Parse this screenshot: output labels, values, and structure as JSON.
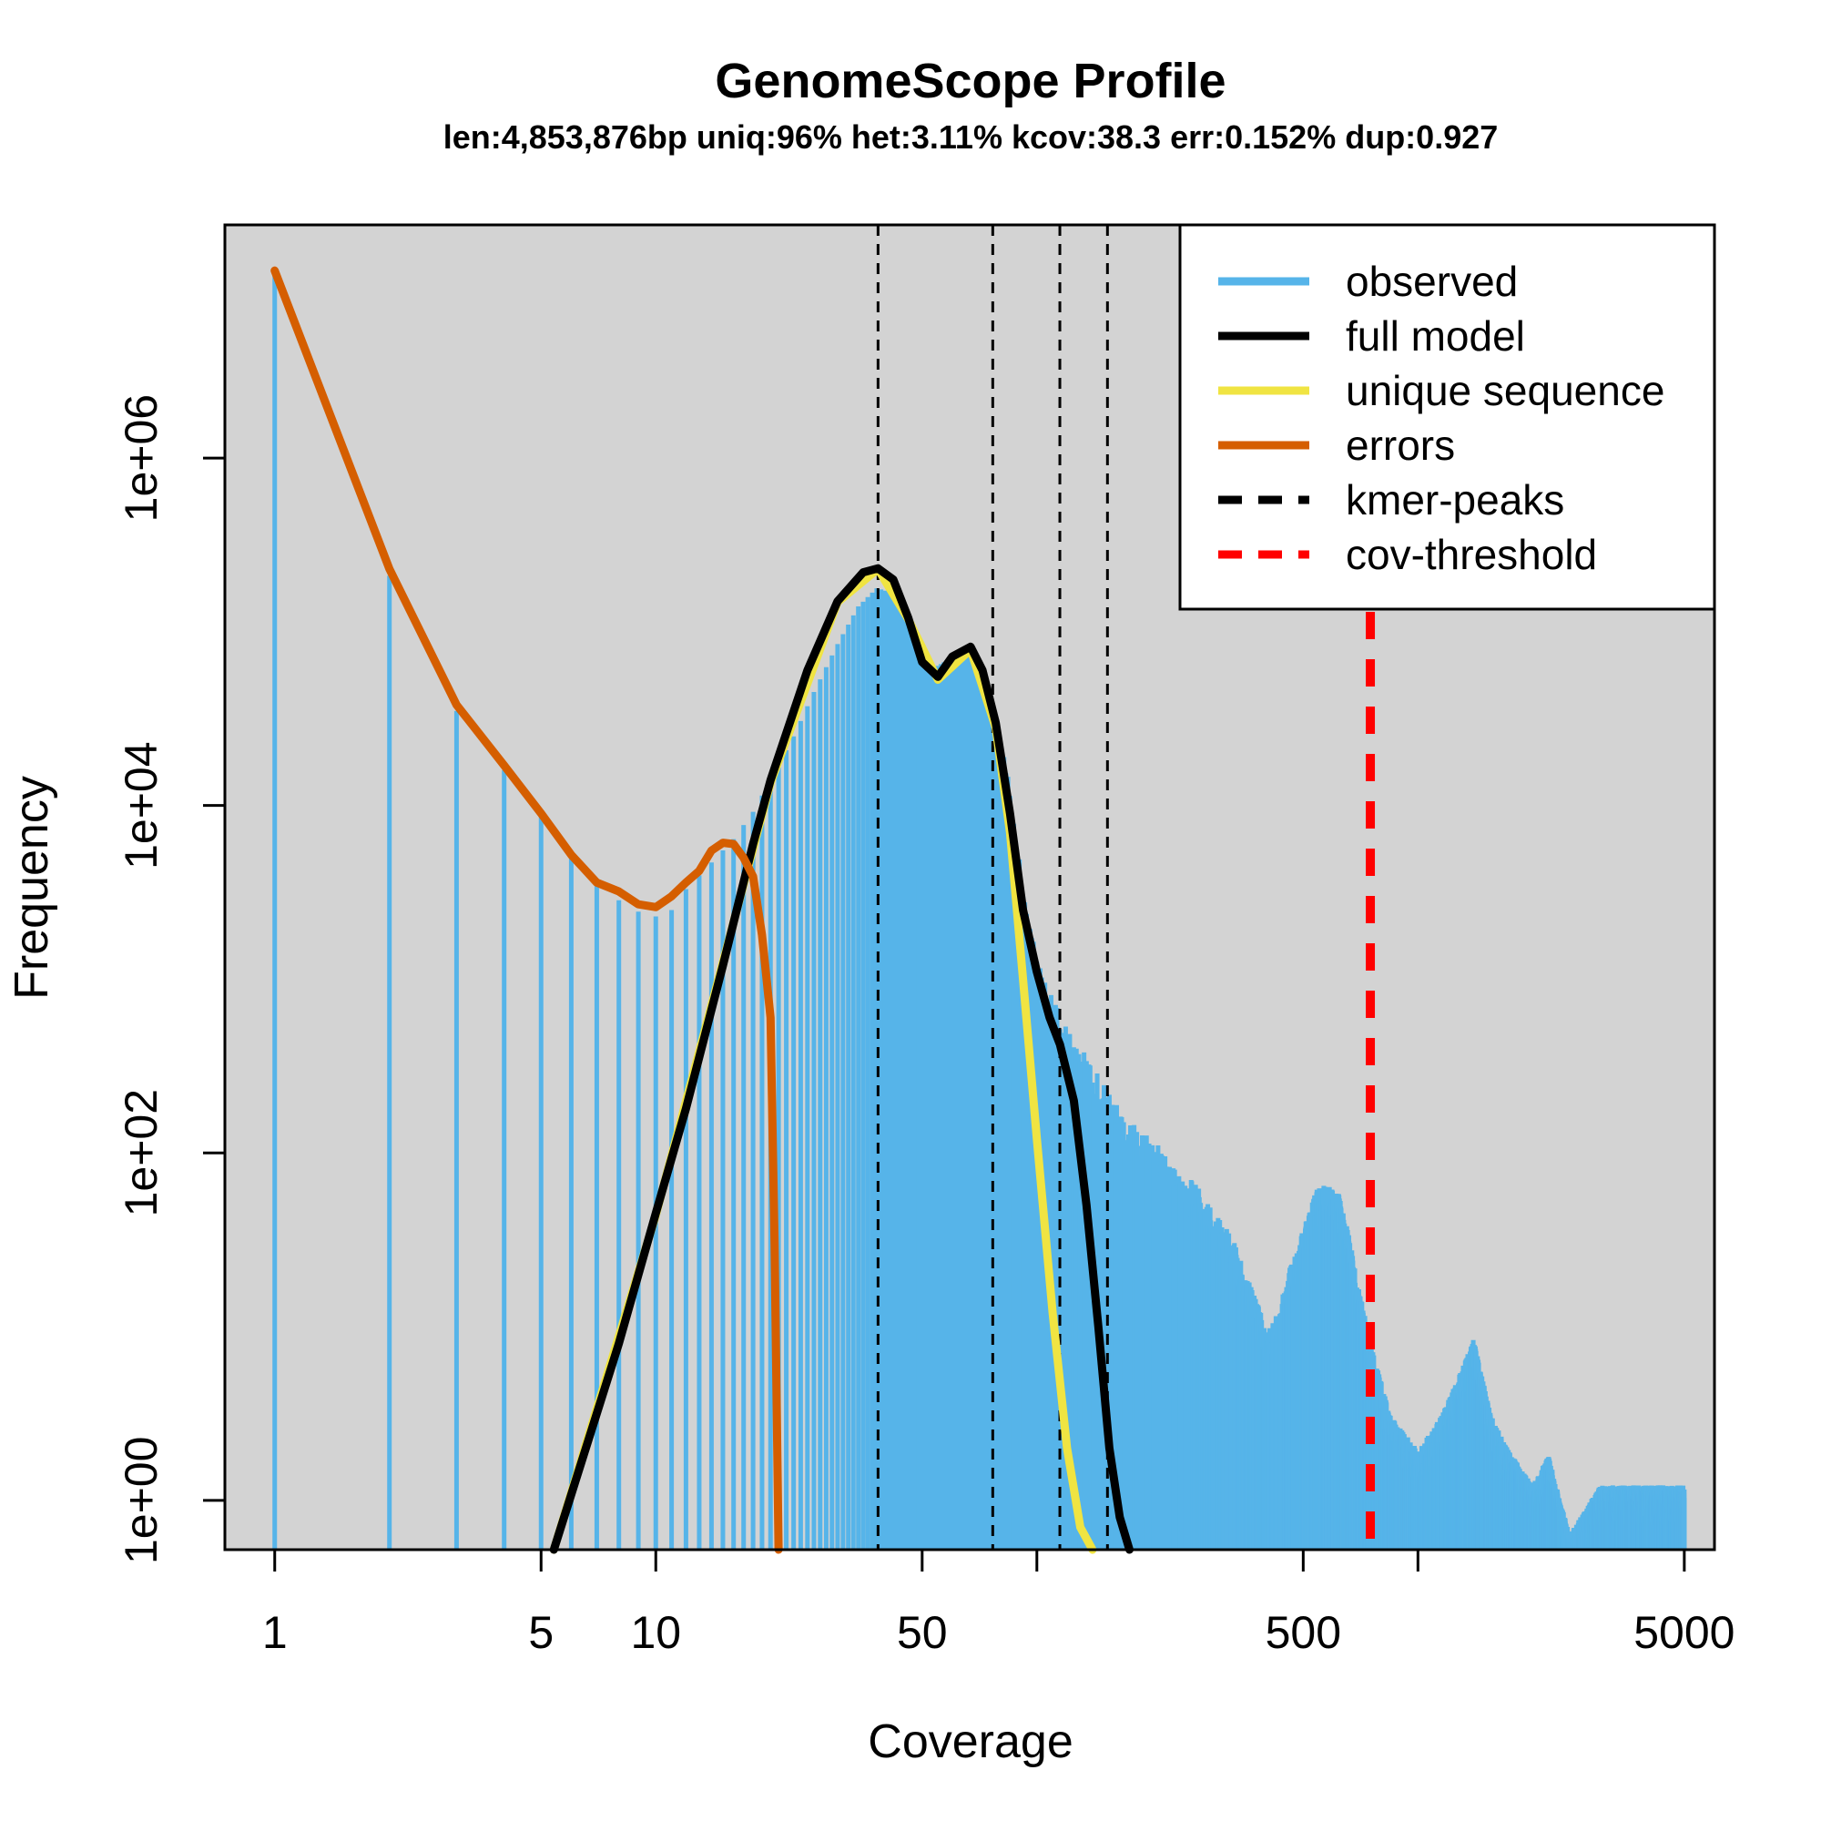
{
  "chart_data": {
    "type": "bar",
    "title": "GenomeScope Profile",
    "subtitle": "len:4,853,876bp uniq:96% het:3.11% kcov:38.3 err:0.152% dup:0.927",
    "xlabel": "Coverage",
    "ylabel": "Frequency",
    "x_scale": "log",
    "y_scale": "log",
    "xlim": [
      0.74,
      6000
    ],
    "ylim": [
      0.52,
      22000000
    ],
    "x_ticks": [
      1,
      5,
      10,
      50,
      100,
      500,
      1000,
      5000
    ],
    "x_tick_labels": [
      "1",
      "5",
      "10",
      "50",
      "",
      "500",
      "",
      "5000"
    ],
    "y_ticks": [
      1,
      100,
      10000,
      1000000
    ],
    "y_tick_labels": [
      "1e+00",
      "1e+02",
      "1e+04",
      "1e+06"
    ],
    "background": "#d3d3d3",
    "legend_position": "top-right",
    "legend": [
      {
        "label": "observed",
        "color": "#56b4e9",
        "style": "solid"
      },
      {
        "label": "full model",
        "color": "#000000",
        "style": "solid"
      },
      {
        "label": "unique sequence",
        "color": "#f0e442",
        "style": "solid"
      },
      {
        "label": "errors",
        "color": "#d55e00",
        "style": "solid"
      },
      {
        "label": "kmer-peaks",
        "color": "#000000",
        "style": "dashed"
      },
      {
        "label": "cov-threshold",
        "color": "#ff0000",
        "style": "dashed"
      }
    ],
    "observed_keypoints": [
      [
        1,
        12000000
      ],
      [
        2,
        210000
      ],
      [
        3,
        35000
      ],
      [
        4,
        16000
      ],
      [
        5,
        8600
      ],
      [
        6,
        5000
      ],
      [
        7,
        3600
      ],
      [
        8,
        2850
      ],
      [
        9,
        2450
      ],
      [
        10,
        2300
      ],
      [
        11,
        2500
      ],
      [
        12,
        3300
      ],
      [
        14,
        4700
      ],
      [
        16,
        6400
      ],
      [
        18,
        9200
      ],
      [
        20,
        14000
      ],
      [
        23,
        25000
      ],
      [
        26,
        45000
      ],
      [
        30,
        85000
      ],
      [
        34,
        140000
      ],
      [
        38,
        178000
      ],
      [
        41,
        170000
      ],
      [
        45,
        130000
      ],
      [
        50,
        75000
      ],
      [
        54,
        62000
      ],
      [
        59,
        70000
      ],
      [
        65,
        82000
      ],
      [
        69,
        75000
      ],
      [
        75,
        42000
      ],
      [
        85,
        11000
      ],
      [
        95,
        1800
      ],
      [
        103,
        900
      ],
      [
        110,
        650
      ],
      [
        120,
        420
      ],
      [
        140,
        270
      ],
      [
        160,
        165
      ],
      [
        180,
        120
      ],
      [
        210,
        90
      ],
      [
        230,
        70
      ],
      [
        260,
        55
      ],
      [
        300,
        36
      ],
      [
        330,
        26
      ],
      [
        360,
        16
      ],
      [
        400,
        8
      ],
      [
        430,
        10
      ],
      [
        460,
        18
      ],
      [
        500,
        30
      ],
      [
        540,
        50
      ],
      [
        580,
        55
      ],
      [
        620,
        48
      ],
      [
        660,
        28
      ],
      [
        700,
        14
      ],
      [
        760,
        6
      ],
      [
        850,
        2.5
      ],
      [
        1000,
        1.6
      ],
      [
        1150,
        2.5
      ],
      [
        1300,
        4.6
      ],
      [
        1400,
        7
      ],
      [
        1450,
        5
      ],
      [
        1550,
        2.6
      ],
      [
        1700,
        1.7
      ],
      [
        2000,
        1
      ],
      [
        2200,
        1.5
      ],
      [
        2500,
        0.52
      ],
      [
        3000,
        1
      ],
      [
        3500,
        1
      ],
      [
        4000,
        1
      ],
      [
        5000,
        1
      ]
    ],
    "series": [
      {
        "name": "full model",
        "color": "#000000",
        "x": [
          5.4,
          8,
          10,
          12,
          15,
          18,
          20,
          25,
          30,
          35,
          38.3,
          42,
          46,
          50,
          55,
          60,
          67,
          72,
          78,
          85,
          92,
          100,
          108,
          115,
          125,
          135,
          145,
          155,
          165,
          175
        ],
        "y": [
          0.52,
          8,
          45,
          180,
          1200,
          6000,
          14000,
          60000,
          150000,
          220000,
          232000,
          200000,
          120000,
          67000,
          55000,
          72000,
          82000,
          60000,
          30000,
          9000,
          2500,
          1100,
          600,
          420,
          200,
          50,
          10,
          2,
          0.8,
          0.52
        ]
      },
      {
        "name": "unique sequence",
        "color": "#f0e442",
        "x": [
          5.4,
          10,
          20,
          30,
          38.3,
          46,
          55,
          67,
          78,
          85,
          92,
          100,
          110,
          120,
          130,
          140
        ],
        "y": [
          0.52,
          44,
          13500,
          148000,
          230000,
          118000,
          53000,
          79000,
          28000,
          7000,
          1000,
          120,
          12,
          2,
          0.7,
          0.52
        ]
      },
      {
        "name": "errors",
        "color": "#d55e00",
        "x": [
          1,
          2,
          3,
          4,
          5,
          6,
          7,
          8,
          9,
          10,
          11,
          12,
          13,
          14,
          15,
          16,
          17,
          18,
          19,
          20,
          20.5,
          21
        ],
        "y": [
          12000000,
          230000,
          38000,
          17000,
          9000,
          5200,
          3600,
          3200,
          2700,
          2600,
          3000,
          3600,
          4200,
          5500,
          6100,
          6000,
          5000,
          3900,
          1800,
          600,
          30,
          0.52
        ]
      }
    ],
    "kmer_peaks": [
      38.3,
      76.6,
      114.9,
      153.2
    ],
    "cov_threshold": 750
  }
}
